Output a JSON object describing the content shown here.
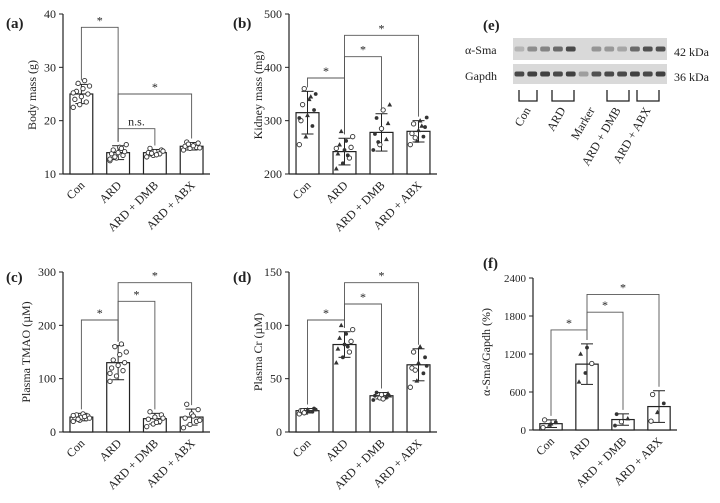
{
  "chart_data": [
    {
      "type": "bar",
      "panel_label": "(a)",
      "ylabel": "Body mass (g)",
      "ylim": [
        10,
        40
      ],
      "yticks": [
        10,
        20,
        30,
        40
      ],
      "categories": [
        "Con",
        "ARD",
        "ARD + DMB",
        "ARD + ABX"
      ],
      "values": [
        25.0,
        14.0,
        14.0,
        15.2
      ],
      "errors": [
        1.8,
        1.3,
        0.6,
        0.7
      ],
      "points": [
        [
          22.5,
          23.0,
          23.5,
          24.0,
          24.5,
          25.0,
          25.5,
          26.0,
          26.5,
          27.0,
          27.5,
          25.2
        ],
        [
          12.5,
          13.0,
          13.5,
          13.8,
          14.0,
          14.2,
          14.5,
          15.0,
          15.5,
          13.2,
          14.8,
          12.8
        ],
        [
          13.2,
          13.5,
          13.8,
          14.0,
          14.2,
          14.5,
          14.8,
          13.6,
          14.3,
          13.9
        ],
        [
          14.5,
          14.8,
          15.0,
          15.2,
          15.5,
          15.8,
          16.0,
          15.3,
          14.9,
          15.6
        ]
      ],
      "marker": "o",
      "comparisons": [
        {
          "from": 0,
          "to": 1,
          "label": "*",
          "y": 37.5
        },
        {
          "from": 1,
          "to": 2,
          "label": "n.s.",
          "y": 18.5
        },
        {
          "from": 1,
          "to": 3,
          "label": "*",
          "y": 25.0
        }
      ]
    },
    {
      "type": "bar",
      "panel_label": "(b)",
      "ylabel": "Kidney mass (mg)",
      "ylim": [
        200,
        500
      ],
      "yticks": [
        200,
        300,
        400,
        500
      ],
      "categories": [
        "Con",
        "ARD",
        "ARD + DMB",
        "ARD + ABX"
      ],
      "values": [
        315,
        242,
        278,
        280
      ],
      "errors": [
        40,
        25,
        35,
        20
      ],
      "points": [
        [
          255,
          270,
          290,
          300,
          310,
          320,
          330,
          340,
          350,
          360,
          345,
          305
        ],
        [
          210,
          220,
          230,
          238,
          245,
          250,
          255,
          262,
          270,
          280,
          235,
          248
        ],
        [
          245,
          255,
          265,
          275,
          285,
          295,
          305,
          320,
          330,
          260
        ],
        [
          255,
          262,
          270,
          276,
          282,
          288,
          294,
          300,
          306,
          268,
          290
        ]
      ],
      "marker": "mixed",
      "comparisons": [
        {
          "from": 0,
          "to": 1,
          "label": "*",
          "y": 380
        },
        {
          "from": 1,
          "to": 2,
          "label": "*",
          "y": 420
        },
        {
          "from": 1,
          "to": 3,
          "label": "*",
          "y": 460
        }
      ]
    },
    {
      "type": "bar",
      "panel_label": "(c)",
      "ylabel": "Plasma TMAO (µM)",
      "ylim": [
        0,
        300
      ],
      "yticks": [
        0,
        100,
        200,
        300
      ],
      "categories": [
        "Con",
        "ARD",
        "ARD + DMB",
        "ARD + ABX"
      ],
      "values": [
        28,
        130,
        25,
        28
      ],
      "errors": [
        7,
        32,
        10,
        15
      ],
      "points": [
        [
          20,
          22,
          25,
          27,
          28,
          30,
          32,
          34,
          26,
          24,
          29,
          31
        ],
        [
          95,
          105,
          115,
          120,
          125,
          130,
          135,
          145,
          150,
          160,
          165,
          110
        ],
        [
          10,
          15,
          20,
          24,
          28,
          32,
          38,
          18,
          26
        ],
        [
          8,
          14,
          20,
          26,
          34,
          42,
          52,
          30,
          22
        ]
      ],
      "marker": "o",
      "comparisons": [
        {
          "from": 0,
          "to": 1,
          "label": "*",
          "y": 210
        },
        {
          "from": 1,
          "to": 2,
          "label": "*",
          "y": 245
        },
        {
          "from": 1,
          "to": 3,
          "label": "*",
          "y": 280
        }
      ]
    },
    {
      "type": "bar",
      "panel_label": "(d)",
      "ylabel": "Plasma Cr (µM)",
      "ylim": [
        0,
        150
      ],
      "yticks": [
        0,
        50,
        100,
        150
      ],
      "categories": [
        "Con",
        "ARD",
        "ARD + DMB",
        "ARD + ABX"
      ],
      "values": [
        20,
        82,
        34,
        63
      ],
      "errors": [
        2,
        12,
        3,
        15
      ],
      "points": [
        [
          17,
          18,
          19,
          20,
          21,
          22,
          20,
          19,
          21,
          18
        ],
        [
          65,
          70,
          75,
          78,
          82,
          85,
          88,
          92,
          96,
          100,
          80
        ],
        [
          30,
          32,
          33,
          34,
          35,
          36,
          37,
          31,
          34
        ],
        [
          42,
          48,
          55,
          60,
          65,
          70,
          75,
          80,
          62,
          58
        ]
      ],
      "marker": "mixed",
      "comparisons": [
        {
          "from": 0,
          "to": 1,
          "label": "*",
          "y": 105
        },
        {
          "from": 1,
          "to": 2,
          "label": "*",
          "y": 120
        },
        {
          "from": 1,
          "to": 3,
          "label": "*",
          "y": 140
        }
      ]
    },
    {
      "type": "bar",
      "panel_label": "(f)",
      "ylabel": "α-Sma/Gapdh (%)",
      "ylim": [
        0,
        2400
      ],
      "yticks": [
        0,
        600,
        1200,
        1800,
        2400
      ],
      "categories": [
        "Con",
        "ARD",
        "ARD + DMB",
        "ARD + ABX"
      ],
      "values": [
        100,
        1040,
        165,
        370
      ],
      "errors": [
        60,
        320,
        90,
        250
      ],
      "points": [
        [
          40,
          80,
          120,
          160,
          100
        ],
        [
          760,
          900,
          1050,
          1200,
          1300
        ],
        [
          70,
          130,
          180,
          250
        ],
        [
          140,
          280,
          420,
          560
        ]
      ],
      "marker": "mixed",
      "comparisons": [
        {
          "from": 0,
          "to": 1,
          "label": "*",
          "y": 1580
        },
        {
          "from": 1,
          "to": 2,
          "label": "*",
          "y": 1860
        },
        {
          "from": 1,
          "to": 3,
          "label": "*",
          "y": 2140
        }
      ]
    }
  ],
  "blot": {
    "panel_label": "(e)",
    "rows": [
      {
        "label": "α-Sma",
        "kda": "42 kDa",
        "lanes": [
          0.12,
          0.35,
          0.4,
          0.55,
          0.75,
          0.0,
          0.3,
          0.28,
          0.2,
          0.55,
          0.7,
          0.7
        ]
      },
      {
        "label": "Gapdh",
        "kda": "36 kDa",
        "lanes": [
          0.75,
          0.8,
          0.8,
          0.75,
          0.8,
          0.25,
          0.7,
          0.75,
          0.75,
          0.8,
          0.75,
          0.8
        ]
      }
    ],
    "groups": [
      "Con",
      "ARD",
      "Marker",
      "ARD + DMB",
      "ARD + ABX"
    ]
  }
}
